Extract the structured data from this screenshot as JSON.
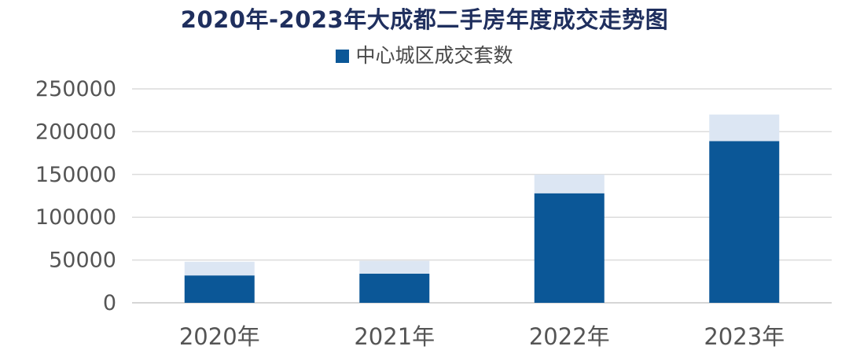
{
  "chart_data": {
    "type": "bar",
    "title": "2020年-2023年大成都二手房年度成交走势图",
    "legend": {
      "position": "top",
      "entries": [
        {
          "name": "中心城区成交套数",
          "color": "#0b5797"
        }
      ]
    },
    "categories": [
      "2020年",
      "2021年",
      "2022年",
      "2023年"
    ],
    "series": [
      {
        "name": "中心城区成交套数",
        "color": "#0b5797",
        "values": [
          32000,
          34000,
          128000,
          189000
        ]
      },
      {
        "color": "#dce6f3",
        "values": [
          16000,
          15000,
          22000,
          31000
        ]
      }
    ],
    "stacked": true,
    "ylim": [
      0,
      250000
    ],
    "yticks": [
      0,
      50000,
      100000,
      150000,
      200000,
      250000
    ],
    "grid": true
  }
}
